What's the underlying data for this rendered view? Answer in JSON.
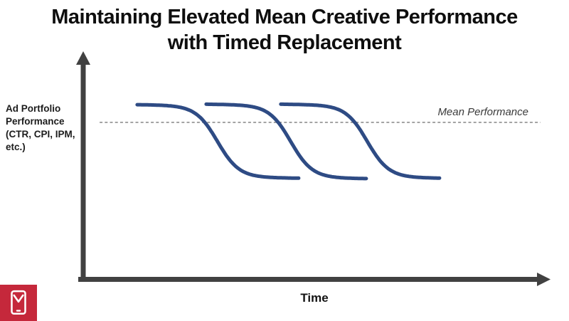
{
  "slide": {
    "title_line1": "Maintaining Elevated Mean Creative Performance",
    "title_line2": "with Timed Replacement"
  },
  "chart_data": {
    "type": "line",
    "title": "Maintaining Elevated Mean Creative Performance with Timed Replacement",
    "xlabel": "Time",
    "ylabel": "Ad Portfolio Performance (CTR, CPI, IPM, etc.)",
    "axes_numeric": false,
    "grid": false,
    "legend": false,
    "x_range": [
      0,
      1
    ],
    "y_range": [
      0,
      1
    ],
    "tilt": 0.008,
    "mean_line": {
      "label": "Mean Performance",
      "level": 0.69,
      "x_start": 0.041,
      "x_end": 0.98,
      "style": "dashed",
      "color": "#8F8F8F"
    },
    "series": [
      {
        "name": "creative-cycle-1",
        "shape": "sigmoid-decay",
        "x_start": 0.121,
        "x_end": 0.465,
        "drop_center": 0.292,
        "drop_width": 0.023,
        "top_level": 0.768,
        "bottom_level": 0.452
      },
      {
        "name": "creative-cycle-2",
        "shape": "sigmoid-decay",
        "x_start": 0.268,
        "x_end": 0.609,
        "drop_center": 0.448,
        "drop_width": 0.023,
        "top_level": 0.77,
        "bottom_level": 0.45
      },
      {
        "name": "creative-cycle-3",
        "shape": "sigmoid-decay",
        "x_start": 0.427,
        "x_end": 0.765,
        "drop_center": 0.611,
        "drop_width": 0.023,
        "top_level": 0.77,
        "bottom_level": 0.452
      }
    ],
    "line_color": "#2E4B84",
    "line_width": 5,
    "axis_color": "#414141"
  },
  "labels": {
    "x_axis": "Time",
    "y_axis": "Ad Portfolio Performance (CTR, CPI, IPM, etc.)",
    "mean_line": "Mean Performance"
  },
  "logo": {
    "background": "#C5283B",
    "glyph": "mobile-phone-with-chevron",
    "glyph_color": "#FFFFFF"
  }
}
